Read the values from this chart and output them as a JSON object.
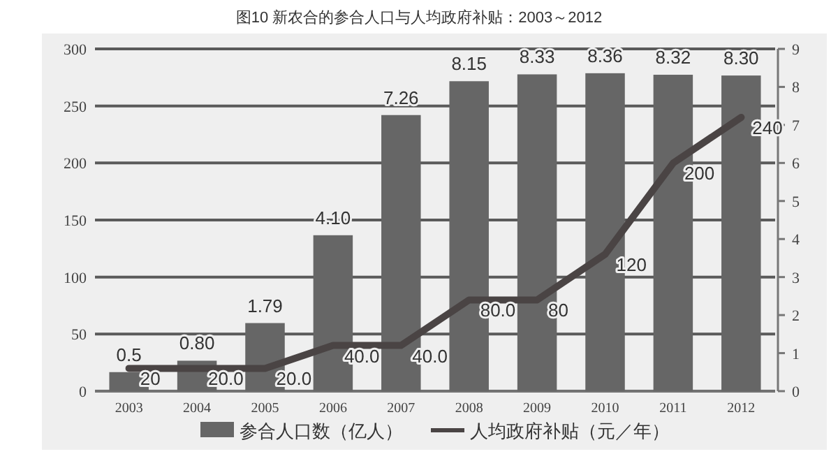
{
  "chart_data": {
    "type": "bar",
    "title": "图10  新农合的参合人口与人均政府补贴：2003～2012",
    "categories": [
      "2003",
      "2004",
      "2005",
      "2006",
      "2007",
      "2008",
      "2009",
      "2010",
      "2011",
      "2012"
    ],
    "series": [
      {
        "name": "参合人口数（亿人）",
        "axis": "y2",
        "color": "#666666",
        "values": [
          0.5,
          0.8,
          1.79,
          4.1,
          7.26,
          8.15,
          8.33,
          8.36,
          8.32,
          8.3
        ],
        "value_labels": [
          "0.5",
          "0.80",
          "1.79",
          "4.10",
          "7.26",
          "8.15",
          "8.33",
          "8.36",
          "8.32",
          "8.30"
        ]
      },
      {
        "name": "人均政府补贴（元／年）",
        "type": "line",
        "color": "#4a4444",
        "values": [
          20,
          20,
          20,
          40,
          40,
          80,
          80,
          120,
          200,
          240
        ],
        "value_labels": [
          "20",
          "20.0",
          "20.0",
          "40.0",
          "40.0",
          "80.0",
          "80",
          "120",
          "200",
          "240"
        ]
      }
    ],
    "ylim": [
      0,
      300
    ],
    "yticks": [
      0,
      50,
      100,
      150,
      200,
      250,
      300
    ],
    "y2lim": [
      0,
      9
    ],
    "y2ticks": [
      0,
      1,
      2,
      3,
      4,
      5,
      6,
      7,
      8,
      9
    ],
    "grid": "y",
    "legend": "bottom"
  }
}
